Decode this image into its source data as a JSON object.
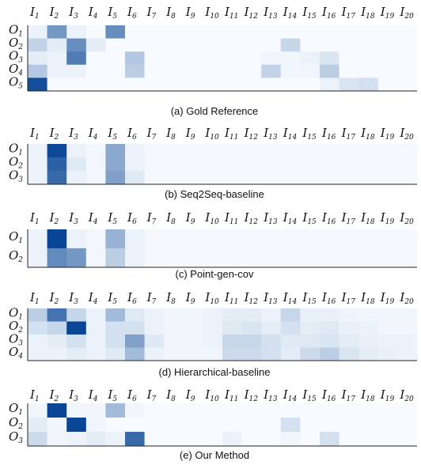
{
  "chart_data": [
    {
      "type": "heatmap",
      "caption": "(a) Gold Reference",
      "columns": [
        "I1",
        "I2",
        "I3",
        "I4",
        "I5",
        "I6",
        "I7",
        "I8",
        "I9",
        "I10",
        "I11",
        "I12",
        "I13",
        "I14",
        "I15",
        "I16",
        "I17",
        "I18",
        "I19",
        "I20"
      ],
      "rows": [
        "O1",
        "O2",
        "O3",
        "O4",
        "O5"
      ],
      "values": [
        [
          0.05,
          0.55,
          0.05,
          0.0,
          0.6,
          0.0,
          0.0,
          0.0,
          0.0,
          0.0,
          0.0,
          0.0,
          0.0,
          0.0,
          0.0,
          0.0,
          0.0,
          0.0,
          0.0,
          0.0
        ],
        [
          0.22,
          0.08,
          0.6,
          0.08,
          0.0,
          0.0,
          0.0,
          0.0,
          0.0,
          0.0,
          0.0,
          0.0,
          0.0,
          0.2,
          0.0,
          0.0,
          0.0,
          0.0,
          0.0,
          0.0
        ],
        [
          0.08,
          0.05,
          0.7,
          0.0,
          0.0,
          0.28,
          0.0,
          0.0,
          0.0,
          0.0,
          0.0,
          0.0,
          0.03,
          0.03,
          0.05,
          0.12,
          0.0,
          0.0,
          0.0,
          0.0
        ],
        [
          0.28,
          0.05,
          0.05,
          0.0,
          0.0,
          0.25,
          0.0,
          0.0,
          0.0,
          0.0,
          0.0,
          0.0,
          0.22,
          0.03,
          0.03,
          0.25,
          0.0,
          0.0,
          0.0,
          0.0
        ],
        [
          0.95,
          0.0,
          0.0,
          0.0,
          0.0,
          0.0,
          0.0,
          0.0,
          0.0,
          0.0,
          0.0,
          0.0,
          0.0,
          0.0,
          0.0,
          0.05,
          0.12,
          0.15,
          0.0,
          0.0
        ]
      ]
    },
    {
      "type": "heatmap",
      "caption": "(b) Seq2Seq-baseline",
      "columns": [
        "I1",
        "I2",
        "I3",
        "I4",
        "I5",
        "I6",
        "I7",
        "I8",
        "I9",
        "I10",
        "I11",
        "I12",
        "I13",
        "I14",
        "I15",
        "I16",
        "I17",
        "I18",
        "I19",
        "I20"
      ],
      "rows": [
        "O1",
        "O2",
        "O3"
      ],
      "values": [
        [
          0.05,
          0.98,
          0.05,
          0.02,
          0.45,
          0.05,
          0.01,
          0.01,
          0.01,
          0.01,
          0.01,
          0.01,
          0.01,
          0.01,
          0.01,
          0.01,
          0.01,
          0.01,
          0.01,
          0.01
        ],
        [
          0.05,
          0.85,
          0.1,
          0.02,
          0.45,
          0.05,
          0.01,
          0.01,
          0.01,
          0.01,
          0.01,
          0.01,
          0.01,
          0.01,
          0.01,
          0.01,
          0.01,
          0.01,
          0.01,
          0.01
        ],
        [
          0.05,
          0.8,
          0.05,
          0.02,
          0.5,
          0.1,
          0.01,
          0.01,
          0.01,
          0.01,
          0.01,
          0.01,
          0.01,
          0.01,
          0.01,
          0.01,
          0.01,
          0.01,
          0.01,
          0.01
        ]
      ]
    },
    {
      "type": "heatmap",
      "caption": "(c) Point-gen-cov",
      "columns": [
        "I1",
        "I2",
        "I3",
        "I4",
        "I5",
        "I6",
        "I7",
        "I8",
        "I9",
        "I10",
        "I11",
        "I12",
        "I13",
        "I14",
        "I15",
        "I16",
        "I17",
        "I18",
        "I19",
        "I20"
      ],
      "rows": [
        "O1",
        "O2"
      ],
      "values": [
        [
          0.05,
          1.0,
          0.05,
          0.02,
          0.4,
          0.05,
          0.01,
          0.01,
          0.01,
          0.01,
          0.01,
          0.01,
          0.01,
          0.01,
          0.01,
          0.01,
          0.01,
          0.01,
          0.01,
          0.01
        ],
        [
          0.05,
          0.62,
          0.55,
          0.02,
          0.25,
          0.05,
          0.01,
          0.01,
          0.01,
          0.01,
          0.01,
          0.01,
          0.01,
          0.01,
          0.01,
          0.01,
          0.01,
          0.01,
          0.01,
          0.01
        ]
      ]
    },
    {
      "type": "heatmap",
      "caption": "(d) Hierarchical-baseline",
      "columns": [
        "I1",
        "I2",
        "I3",
        "I4",
        "I5",
        "I6",
        "I7",
        "I8",
        "I9",
        "I10",
        "I11",
        "I12",
        "I13",
        "I14",
        "I15",
        "I16",
        "I17",
        "I18",
        "I19",
        "I20"
      ],
      "rows": [
        "O1",
        "O2",
        "O3",
        "O4"
      ],
      "values": [
        [
          0.25,
          0.75,
          0.2,
          0.05,
          0.35,
          0.1,
          0.05,
          0.03,
          0.03,
          0.05,
          0.08,
          0.08,
          0.05,
          0.2,
          0.06,
          0.06,
          0.04,
          0.03,
          0.03,
          0.03
        ],
        [
          0.15,
          0.2,
          1.0,
          0.05,
          0.15,
          0.15,
          0.05,
          0.03,
          0.03,
          0.05,
          0.1,
          0.12,
          0.08,
          0.15,
          0.08,
          0.1,
          0.06,
          0.05,
          0.03,
          0.03
        ],
        [
          0.05,
          0.08,
          0.15,
          0.05,
          0.15,
          0.5,
          0.1,
          0.03,
          0.03,
          0.05,
          0.2,
          0.2,
          0.15,
          0.1,
          0.1,
          0.12,
          0.08,
          0.06,
          0.05,
          0.05
        ],
        [
          0.05,
          0.05,
          0.08,
          0.05,
          0.1,
          0.35,
          0.05,
          0.03,
          0.03,
          0.03,
          0.18,
          0.18,
          0.15,
          0.08,
          0.18,
          0.25,
          0.12,
          0.08,
          0.06,
          0.05
        ]
      ]
    },
    {
      "type": "heatmap",
      "caption": "(e) Our Method",
      "columns": [
        "I1",
        "I2",
        "I3",
        "I4",
        "I5",
        "I6",
        "I7",
        "I8",
        "I9",
        "I10",
        "I11",
        "I12",
        "I13",
        "I14",
        "I15",
        "I16",
        "I17",
        "I18",
        "I19",
        "I20"
      ],
      "rows": [
        "O1",
        "O2",
        "O3"
      ],
      "values": [
        [
          0.03,
          1.0,
          0.03,
          0.03,
          0.35,
          0.03,
          0.0,
          0.0,
          0.0,
          0.0,
          0.0,
          0.0,
          0.0,
          0.0,
          0.0,
          0.0,
          0.0,
          0.0,
          0.0,
          0.0
        ],
        [
          0.08,
          0.03,
          1.0,
          0.03,
          0.0,
          0.0,
          0.0,
          0.0,
          0.0,
          0.0,
          0.0,
          0.0,
          0.0,
          0.15,
          0.0,
          0.0,
          0.0,
          0.0,
          0.0,
          0.0
        ],
        [
          0.18,
          0.03,
          0.05,
          0.08,
          0.05,
          0.8,
          0.0,
          0.0,
          0.0,
          0.0,
          0.05,
          0.0,
          0.0,
          0.03,
          0.0,
          0.15,
          0.0,
          0.0,
          0.0,
          0.0
        ]
      ]
    }
  ]
}
